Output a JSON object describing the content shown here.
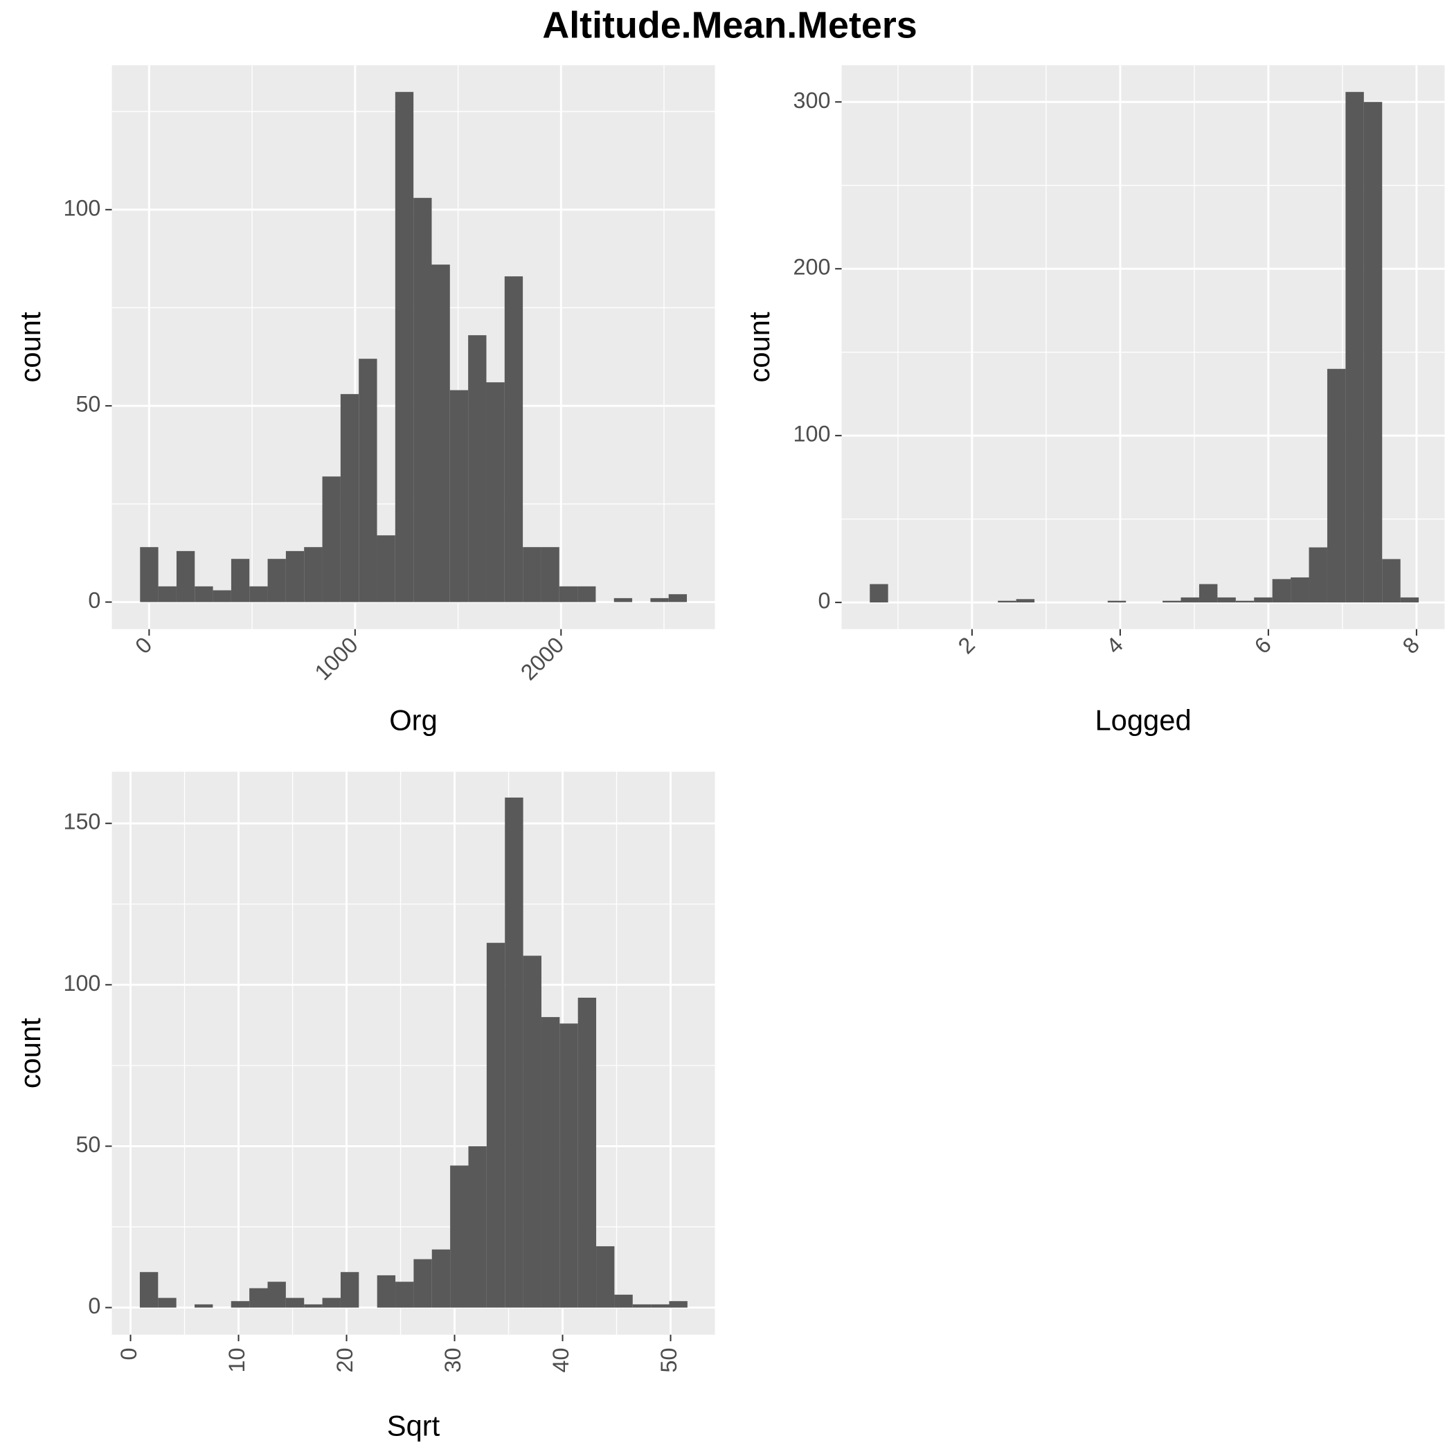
{
  "title": "Altitude.Mean.Meters",
  "chart_data": [
    {
      "type": "histogram",
      "xlabel": "Org",
      "ylabel": "count",
      "color": "#595959",
      "grid": true,
      "bins": [
        -44,
        44.5,
        133,
        221.5,
        310,
        398.5,
        487,
        575.5,
        664,
        752.5,
        841,
        929.5,
        1018,
        1106.5,
        1195,
        1283.5,
        1372,
        1460.5,
        1549,
        1637.5,
        1726,
        1814.5,
        1903,
        1991.5,
        2080,
        2168.5,
        2257,
        2345.5,
        2434,
        2522.5,
        2611
      ],
      "values": [
        14,
        4,
        13,
        4,
        3,
        11,
        4,
        11,
        13,
        14,
        32,
        53,
        62,
        17,
        130,
        103,
        86,
        54,
        68,
        56,
        83,
        14,
        14,
        4,
        4,
        0,
        1,
        0,
        1,
        2
      ],
      "xlim": [
        -181,
        2747
      ],
      "ylim": [
        -6.9,
        136.8
      ],
      "xticks": [
        0,
        1000,
        2000
      ],
      "xminor": [
        500,
        1500,
        2500
      ],
      "yticks": [
        0,
        50,
        100
      ],
      "yminor": [
        25,
        75,
        125
      ],
      "xtick_rotation": 45
    },
    {
      "type": "histogram",
      "xlabel": "Logged",
      "ylabel": "count",
      "color": "#595959",
      "grid": true,
      "bins": [
        0.62,
        0.867,
        1.114,
        1.361,
        1.608,
        1.855,
        2.102,
        2.349,
        2.596,
        2.843,
        3.09,
        3.337,
        3.584,
        3.831,
        4.078,
        4.325,
        4.572,
        4.819,
        5.066,
        5.313,
        5.56,
        5.807,
        6.054,
        6.301,
        6.548,
        6.795,
        7.042,
        7.289,
        7.536,
        7.783,
        8.03
      ],
      "values": [
        11,
        0,
        0,
        0,
        0,
        0,
        0,
        1,
        2,
        0,
        0,
        0,
        0,
        1,
        0,
        0,
        1,
        3,
        11,
        3,
        1,
        3,
        14,
        15,
        33,
        140,
        306,
        300,
        26,
        3
      ],
      "xlim": [
        0.24,
        8.38
      ],
      "ylim": [
        -16,
        322
      ],
      "xticks": [
        2,
        4,
        6,
        8
      ],
      "xminor": [
        1,
        3,
        5,
        7
      ],
      "yticks": [
        0,
        100,
        200,
        300
      ],
      "yminor": [
        50,
        150,
        250
      ],
      "xtick_rotation": 45
    },
    {
      "type": "histogram",
      "xlabel": "Sqrt",
      "ylabel": "count",
      "color": "#595959",
      "grid": true,
      "bins": [
        0.86,
        2.55,
        4.24,
        5.93,
        7.62,
        9.31,
        11,
        12.69,
        14.38,
        16.07,
        17.76,
        19.45,
        21.14,
        22.83,
        24.52,
        26.21,
        27.9,
        29.59,
        31.28,
        32.97,
        34.66,
        36.35,
        38.04,
        39.73,
        41.42,
        43.11,
        44.8,
        46.49,
        48.18,
        49.87,
        51.56
      ],
      "values": [
        11,
        3,
        0,
        1,
        0,
        2,
        6,
        8,
        3,
        1,
        3,
        11,
        0,
        10,
        8,
        15,
        18,
        44,
        50,
        113,
        158,
        109,
        90,
        88,
        96,
        19,
        4,
        1,
        1,
        2
      ],
      "xlim": [
        -1.73,
        54.1
      ],
      "ylim": [
        -8.4,
        166
      ],
      "xticks": [
        0,
        10,
        20,
        30,
        40,
        50
      ],
      "xminor": [
        5,
        15,
        25,
        35,
        45
      ],
      "yticks": [
        0,
        50,
        100,
        150
      ],
      "yminor": [
        25,
        75,
        125
      ],
      "xtick_rotation": 90
    }
  ]
}
